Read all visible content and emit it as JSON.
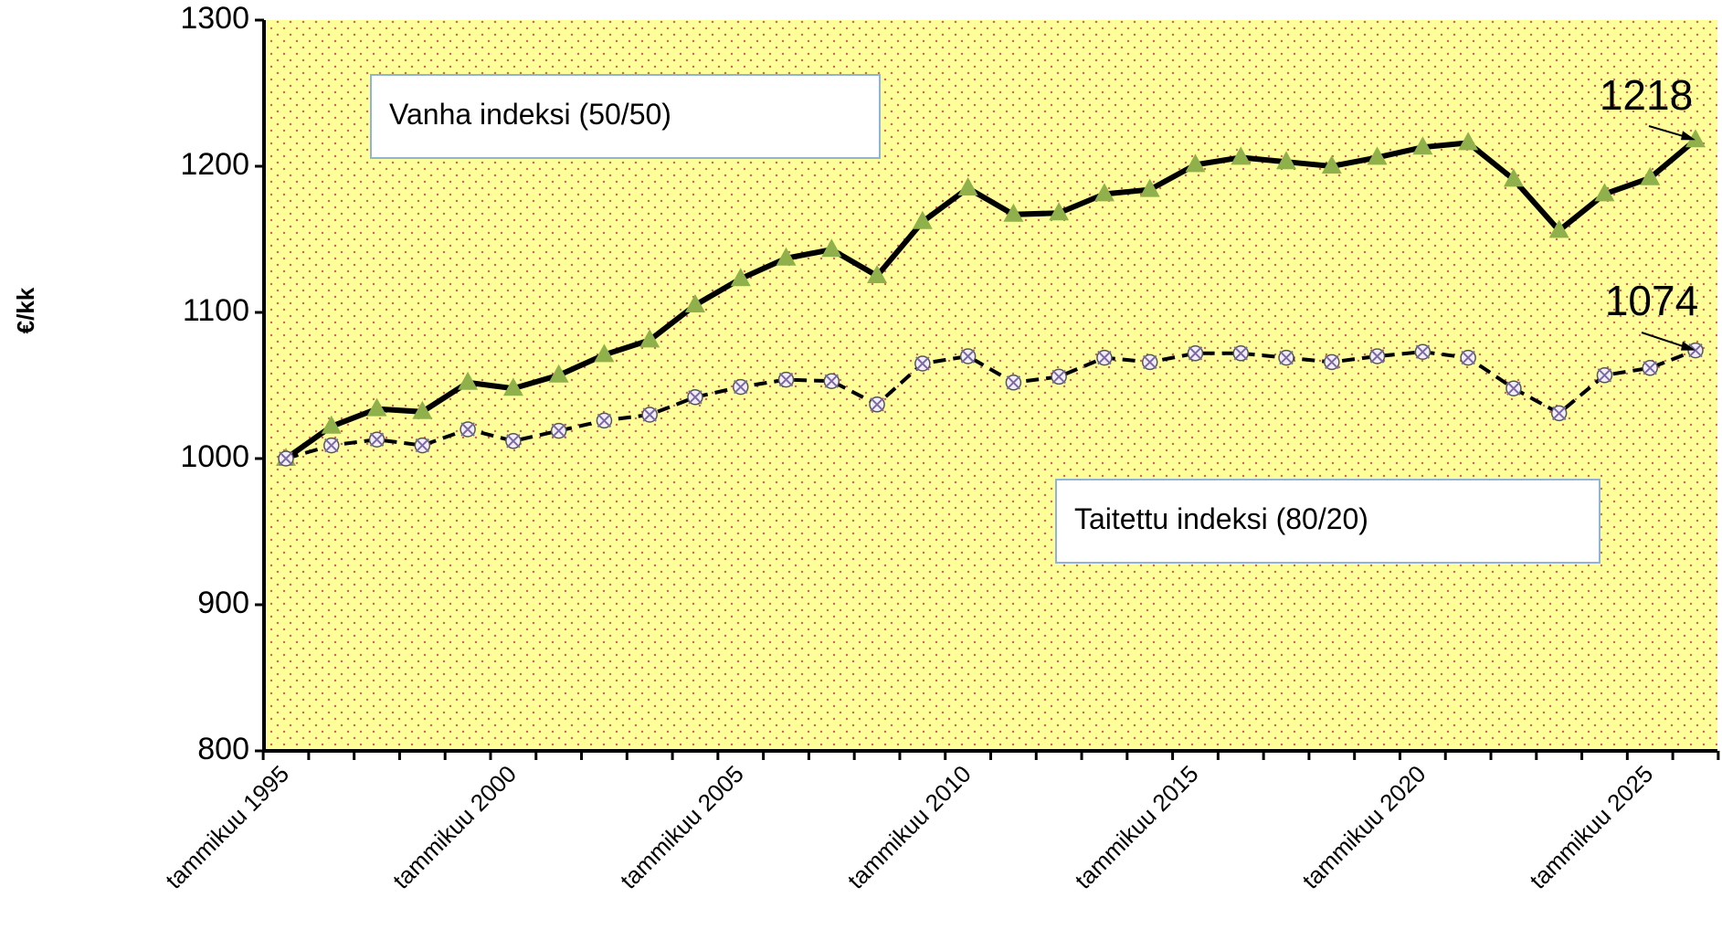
{
  "chart_data": {
    "type": "line",
    "ylabel": "€/kk",
    "categories": [
      "tammikuu 1995",
      null,
      null,
      null,
      null,
      "tammikuu 2000",
      null,
      null,
      null,
      null,
      "tammikuu 2005",
      null,
      null,
      null,
      null,
      "tammikuu 2010",
      null,
      null,
      null,
      null,
      "tammikuu 2015",
      null,
      null,
      null,
      null,
      "tammikuu 2020",
      null,
      null,
      null,
      null,
      "tammikuu 2025",
      null
    ],
    "series": [
      {
        "name": "Vanha indeksi (50/50)",
        "color": "#000000",
        "marker_color": "#8fb04a",
        "values": [
          1000,
          1022,
          1034,
          1032,
          1052,
          1048,
          1057,
          1071,
          1081,
          1105,
          1123,
          1137,
          1143,
          1125,
          1162,
          1185,
          1167,
          1168,
          1181,
          1184,
          1201,
          1206,
          1203,
          1200,
          1206,
          1213,
          1216,
          1191,
          1156,
          1181,
          1192,
          1218
        ]
      },
      {
        "name": "Taitettu indeksi (80/20)",
        "color": "#000000",
        "marker_color": "#7a6aa0",
        "values": [
          1000,
          1009,
          1013,
          1009,
          1020,
          1012,
          1019,
          1026,
          1030,
          1042,
          1049,
          1054,
          1053,
          1037,
          1065,
          1070,
          1052,
          1056,
          1069,
          1066,
          1072,
          1072,
          1069,
          1066,
          1070,
          1073,
          1069,
          1048,
          1031,
          1057,
          1062,
          1074
        ]
      }
    ],
    "ylim": [
      800,
      1300
    ],
    "yticks": [
      800,
      900,
      1000,
      1100,
      1200,
      1300
    ]
  }
}
